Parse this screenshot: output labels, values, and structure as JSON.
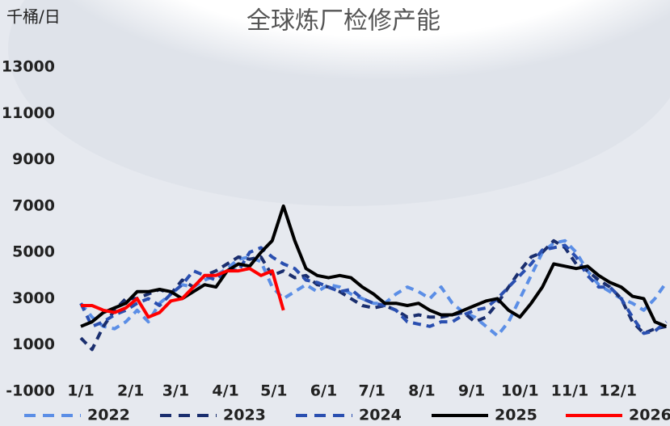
{
  "chart_data": {
    "type": "line",
    "title": "全球炼厂检修产能",
    "y_label": "千桶/日",
    "x": [
      "1/1",
      "1/8",
      "1/15",
      "1/22",
      "1/29",
      "2/5",
      "2/12",
      "2/19",
      "2/26",
      "3/5",
      "3/12",
      "3/19",
      "3/26",
      "4/2",
      "4/9",
      "4/16",
      "4/23",
      "4/30",
      "5/7",
      "5/14",
      "5/21",
      "5/28",
      "6/4",
      "6/11",
      "6/18",
      "6/25",
      "7/2",
      "7/9",
      "7/16",
      "7/23",
      "7/30",
      "8/6",
      "8/13",
      "8/20",
      "8/27",
      "9/3",
      "9/10",
      "9/17",
      "9/24",
      "10/1",
      "10/8",
      "10/15",
      "10/22",
      "10/29",
      "11/5",
      "11/12",
      "11/19",
      "11/26",
      "12/3",
      "12/10",
      "12/17",
      "12/24",
      "12/31"
    ],
    "xticks": [
      "1/1",
      "2/1",
      "3/1",
      "4/1",
      "5/1",
      "6/1",
      "7/1",
      "8/1",
      "9/1",
      "10/1",
      "11/1",
      "12/1"
    ],
    "ylim": [
      -1000,
      13000
    ],
    "yticks": [
      -1000,
      1000,
      3000,
      5000,
      7000,
      9000,
      11000,
      13000
    ],
    "grid": false,
    "legend": "bottom",
    "series": [
      {
        "name": "2022",
        "color": "#5b8ee6",
        "dash": true,
        "values": [
          2800,
          2200,
          1800,
          1700,
          2000,
          2500,
          2000,
          2800,
          3200,
          3600,
          3500,
          3800,
          4000,
          4300,
          4700,
          4800,
          4600,
          3500,
          3000,
          3300,
          3600,
          3300,
          3600,
          3500,
          3200,
          3000,
          2800,
          2800,
          3200,
          3500,
          3300,
          3000,
          3500,
          2800,
          2400,
          2200,
          1800,
          1400,
          2000,
          3000,
          4000,
          5000,
          5400,
          5500,
          5000,
          4200,
          3600,
          3300,
          3000,
          2800,
          2500,
          3000,
          3700
        ]
      },
      {
        "name": "2023",
        "color": "#1a2e6e",
        "dash": true,
        "values": [
          1300,
          800,
          1800,
          2500,
          3000,
          3000,
          3200,
          3400,
          3200,
          3800,
          3500,
          4000,
          4200,
          4500,
          4800,
          4700,
          4800,
          4000,
          4200,
          3900,
          4000,
          3600,
          3500,
          3300,
          3000,
          2700,
          2600,
          2700,
          2500,
          2200,
          2300,
          2200,
          2200,
          2300,
          2400,
          2000,
          2200,
          2800,
          3500,
          4200,
          4800,
          5000,
          5500,
          5200,
          4500,
          4200,
          3800,
          3500,
          3000,
          2000,
          1500,
          1700,
          1800
        ]
      },
      {
        "name": "2024",
        "color": "#2a4fb0",
        "dash": true,
        "values": [
          2800,
          1800,
          2000,
          2300,
          2500,
          2800,
          3000,
          2700,
          3200,
          3600,
          4200,
          4000,
          3800,
          4300,
          4200,
          5000,
          5200,
          4800,
          4500,
          4300,
          3800,
          3700,
          3500,
          3300,
          3400,
          3000,
          2800,
          2700,
          2500,
          2000,
          1900,
          1800,
          2000,
          2000,
          2300,
          2500,
          2600,
          3000,
          3500,
          4000,
          4500,
          5100,
          5200,
          5300,
          4800,
          4000,
          3500,
          3500,
          3000,
          2200,
          1500,
          1600,
          2000
        ]
      },
      {
        "name": "2025",
        "color": "#000000",
        "dash": false,
        "values": [
          1800,
          2000,
          2400,
          2600,
          2800,
          3300,
          3300,
          3400,
          3300,
          3000,
          3300,
          3600,
          3500,
          4200,
          4500,
          4400,
          5000,
          5500,
          7000,
          5500,
          4300,
          4000,
          3900,
          4000,
          3900,
          3500,
          3200,
          2800,
          2800,
          2700,
          2800,
          2500,
          2300,
          2300,
          2500,
          2700,
          2900,
          3000,
          2500,
          2200,
          2800,
          3500,
          4500,
          4400,
          4300,
          4400,
          4000,
          3700,
          3500,
          3100,
          3000,
          2000,
          1800
        ]
      },
      {
        "name": "2026",
        "color": "#ff0000",
        "dash": false,
        "values": [
          2700,
          2700,
          2500,
          2400,
          2600,
          3000,
          2200,
          2400,
          2900,
          3000,
          3500,
          4000,
          4000,
          4200,
          4200,
          4300,
          4000,
          4200,
          2500,
          null,
          null,
          null,
          null,
          null,
          null,
          null,
          null,
          null,
          null,
          null,
          null,
          null,
          null,
          null,
          null,
          null,
          null,
          null,
          null,
          null,
          null,
          null,
          null,
          null,
          null,
          null,
          null,
          null,
          null,
          null,
          null,
          null,
          null
        ]
      }
    ]
  }
}
